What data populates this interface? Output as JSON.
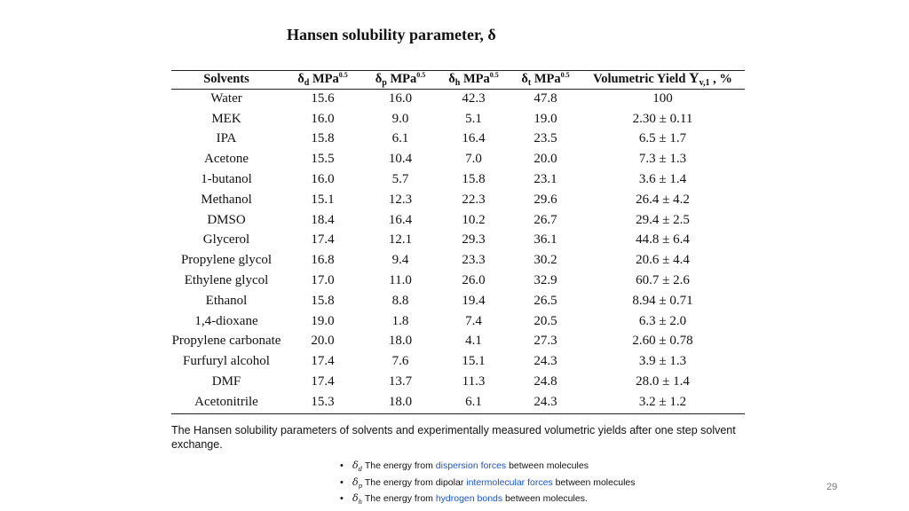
{
  "slide": {
    "title": "Hansen solubility parameter, δ",
    "page_number": "29"
  },
  "table": {
    "headers": {
      "solvents": "Solvents",
      "delta_symbol": "δ",
      "d_sub": "d",
      "p_sub": "p",
      "h_sub": "h",
      "t_sub": "t",
      "unit": "MPa",
      "unit_exp": "0.5",
      "yield_label": "Volumetric Yield",
      "yield_Y": "Y",
      "yield_sub": "v,1",
      "yield_unit": ", %"
    },
    "rows": [
      {
        "solvent": "Water",
        "dd": "15.6",
        "dp": "16.0",
        "dh": "42.3",
        "dt": "47.8",
        "yield": "100"
      },
      {
        "solvent": "MEK",
        "dd": "16.0",
        "dp": "9.0",
        "dh": "5.1",
        "dt": "19.0",
        "yield": "2.30 ± 0.11"
      },
      {
        "solvent": "IPA",
        "dd": "15.8",
        "dp": "6.1",
        "dh": "16.4",
        "dt": "23.5",
        "yield": "6.5 ± 1.7"
      },
      {
        "solvent": "Acetone",
        "dd": "15.5",
        "dp": "10.4",
        "dh": "7.0",
        "dt": "20.0",
        "yield": "7.3 ± 1.3"
      },
      {
        "solvent": "1-butanol",
        "dd": "16.0",
        "dp": "5.7",
        "dh": "15.8",
        "dt": "23.1",
        "yield": "3.6 ± 1.4"
      },
      {
        "solvent": "Methanol",
        "dd": "15.1",
        "dp": "12.3",
        "dh": "22.3",
        "dt": "29.6",
        "yield": "26.4 ± 4.2"
      },
      {
        "solvent": "DMSO",
        "dd": "18.4",
        "dp": "16.4",
        "dh": "10.2",
        "dt": "26.7",
        "yield": "29.4 ± 2.5"
      },
      {
        "solvent": "Glycerol",
        "dd": "17.4",
        "dp": "12.1",
        "dh": "29.3",
        "dt": "36.1",
        "yield": "44.8 ± 6.4"
      },
      {
        "solvent": "Propylene glycol",
        "dd": "16.8",
        "dp": "9.4",
        "dh": "23.3",
        "dt": "30.2",
        "yield": "20.6 ± 4.4"
      },
      {
        "solvent": "Ethylene glycol",
        "dd": "17.0",
        "dp": "11.0",
        "dh": "26.0",
        "dt": "32.9",
        "yield": "60.7 ± 2.6"
      },
      {
        "solvent": "Ethanol",
        "dd": "15.8",
        "dp": "8.8",
        "dh": "19.4",
        "dt": "26.5",
        "yield": "8.94 ± 0.71"
      },
      {
        "solvent": "1,4-dioxane",
        "dd": "19.0",
        "dp": "1.8",
        "dh": "7.4",
        "dt": "20.5",
        "yield": "6.3 ± 2.0"
      },
      {
        "solvent": "Propylene carbonate",
        "dd": "20.0",
        "dp": "18.0",
        "dh": "4.1",
        "dt": "27.3",
        "yield": "2.60 ± 0.78"
      },
      {
        "solvent": "Furfuryl alcohol",
        "dd": "17.4",
        "dp": "7.6",
        "dh": "15.1",
        "dt": "24.3",
        "yield": "3.9 ± 1.3"
      },
      {
        "solvent": "DMF",
        "dd": "17.4",
        "dp": "13.7",
        "dh": "11.3",
        "dt": "24.8",
        "yield": "28.0 ± 1.4"
      },
      {
        "solvent": "Acetonitrile",
        "dd": "15.3",
        "dp": "18.0",
        "dh": "6.1",
        "dt": "24.3",
        "yield": "3.2 ± 1.2"
      }
    ],
    "caption": "The Hansen solubility parameters of solvents and experimentally measured volumetric yields after one step solvent exchange."
  },
  "definitions": [
    {
      "symbol": "δ",
      "sub": "d",
      "before": "The energy from ",
      "link": "dispersion forces",
      "after": " between molecules"
    },
    {
      "symbol": "δ",
      "sub": "p",
      "before": "The energy from dipolar ",
      "link": "intermolecular forces",
      "after": " between molecules"
    },
    {
      "symbol": "δ",
      "sub": "h",
      "before": "The energy from ",
      "link": "hydrogen bonds",
      "after": " between molecules."
    }
  ],
  "colors": {
    "link": "#1a56c8",
    "text": "#111111",
    "page_number": "#777777"
  }
}
